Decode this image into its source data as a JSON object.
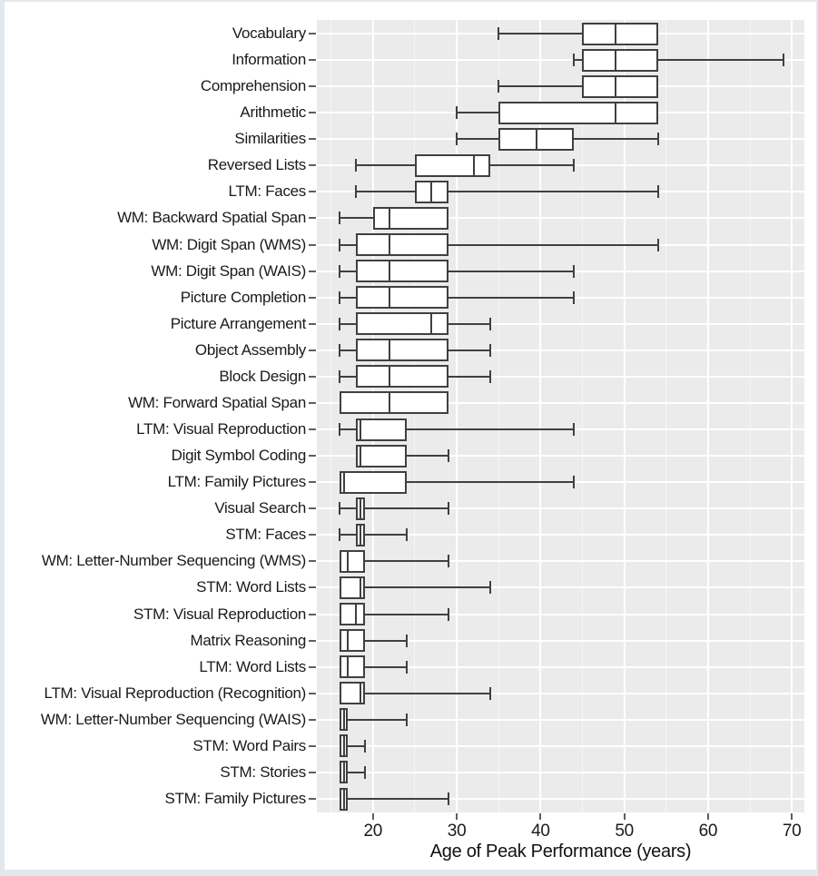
{
  "chart_data": {
    "type": "boxplot",
    "orientation": "horizontal",
    "title": "",
    "xlabel": "Age of Peak Performance (years)",
    "ylabel": "",
    "xlim": [
      13.3,
      71.5
    ],
    "x_ticks": [
      20,
      30,
      40,
      50,
      60,
      70
    ],
    "x_minor_gridlines": [
      15,
      25,
      35,
      45,
      55,
      65
    ],
    "grid": true,
    "legend": "none",
    "panel_order": "top_to_bottom",
    "series": [
      {
        "label": "Vocabulary",
        "low": 35,
        "q1": 45,
        "median": 49,
        "q3": 54,
        "high": 54
      },
      {
        "label": "Information",
        "low": 44,
        "q1": 45,
        "median": 49,
        "q3": 54,
        "high": 69
      },
      {
        "label": "Comprehension",
        "low": 35,
        "q1": 45,
        "median": 49,
        "q3": 54,
        "high": 54
      },
      {
        "label": "Arithmetic",
        "low": 30,
        "q1": 35,
        "median": 49,
        "q3": 54,
        "high": 54
      },
      {
        "label": "Similarities",
        "low": 30,
        "q1": 35,
        "median": 39.5,
        "q3": 44,
        "high": 54
      },
      {
        "label": "Reversed Lists",
        "low": 18,
        "q1": 25,
        "median": 32,
        "q3": 34,
        "high": 44
      },
      {
        "label": "LTM: Faces",
        "low": 18,
        "q1": 25,
        "median": 27,
        "q3": 29,
        "high": 54
      },
      {
        "label": "WM: Backward Spatial Span",
        "low": 16,
        "q1": 20,
        "median": 22,
        "q3": 29,
        "high": 29
      },
      {
        "label": "WM: Digit Span (WMS)",
        "low": 16,
        "q1": 18,
        "median": 22,
        "q3": 29,
        "high": 54
      },
      {
        "label": "WM: Digit Span (WAIS)",
        "low": 16,
        "q1": 18,
        "median": 22,
        "q3": 29,
        "high": 44
      },
      {
        "label": "Picture Completion",
        "low": 16,
        "q1": 18,
        "median": 22,
        "q3": 29,
        "high": 44
      },
      {
        "label": "Picture Arrangement",
        "low": 16,
        "q1": 18,
        "median": 27,
        "q3": 29,
        "high": 34
      },
      {
        "label": "Object Assembly",
        "low": 16,
        "q1": 18,
        "median": 22,
        "q3": 29,
        "high": 34
      },
      {
        "label": "Block Design",
        "low": 16,
        "q1": 18,
        "median": 22,
        "q3": 29,
        "high": 34
      },
      {
        "label": "WM: Forward Spatial Span",
        "low": 16,
        "q1": 16,
        "median": 22,
        "q3": 29,
        "high": 29
      },
      {
        "label": "LTM: Visual Reproduction",
        "low": 16,
        "q1": 18,
        "median": 18.5,
        "q3": 24,
        "high": 44
      },
      {
        "label": "Digit Symbol Coding",
        "low": 18,
        "q1": 18,
        "median": 18.5,
        "q3": 24,
        "high": 29
      },
      {
        "label": "LTM: Family Pictures",
        "low": 16,
        "q1": 16,
        "median": 16.5,
        "q3": 24,
        "high": 44
      },
      {
        "label": "Visual Search",
        "low": 16,
        "q1": 18,
        "median": 18.5,
        "q3": 19,
        "high": 29
      },
      {
        "label": "STM: Faces",
        "low": 16,
        "q1": 18,
        "median": 18.5,
        "q3": 19,
        "high": 24
      },
      {
        "label": "WM: Letter-Number Sequencing (WMS)",
        "low": 16,
        "q1": 16,
        "median": 17,
        "q3": 19,
        "high": 29
      },
      {
        "label": "STM: Word Lists",
        "low": 16,
        "q1": 16,
        "median": 18.5,
        "q3": 19,
        "high": 34
      },
      {
        "label": "STM: Visual Reproduction",
        "low": 16,
        "q1": 16,
        "median": 18,
        "q3": 19,
        "high": 29
      },
      {
        "label": "Matrix Reasoning",
        "low": 16,
        "q1": 16,
        "median": 17,
        "q3": 19,
        "high": 24
      },
      {
        "label": "LTM: Word Lists",
        "low": 16,
        "q1": 16,
        "median": 17,
        "q3": 19,
        "high": 24
      },
      {
        "label": "LTM: Visual Reproduction (Recognition)",
        "low": 16,
        "q1": 16,
        "median": 18.5,
        "q3": 19,
        "high": 34
      },
      {
        "label": "WM: Letter-Number Sequencing (WAIS)",
        "low": 16,
        "q1": 16,
        "median": 16.5,
        "q3": 17,
        "high": 24
      },
      {
        "label": "STM: Word Pairs",
        "low": 16,
        "q1": 16,
        "median": 16.5,
        "q3": 17,
        "high": 19
      },
      {
        "label": "STM: Stories",
        "low": 16,
        "q1": 16,
        "median": 16.5,
        "q3": 17,
        "high": 19
      },
      {
        "label": "STM: Family Pictures",
        "low": 16,
        "q1": 16,
        "median": 16.5,
        "q3": 17,
        "high": 29
      }
    ]
  },
  "colors": {
    "panel_background": "#ebebeb",
    "gridline": "#ffffff",
    "box_fill": "#ffffff",
    "box_stroke": "#404040",
    "text": "#1a1a1a",
    "axis_tick": "#5f5f5f",
    "page_frame": "#e1e9ed",
    "page_background": "#ffffff"
  }
}
